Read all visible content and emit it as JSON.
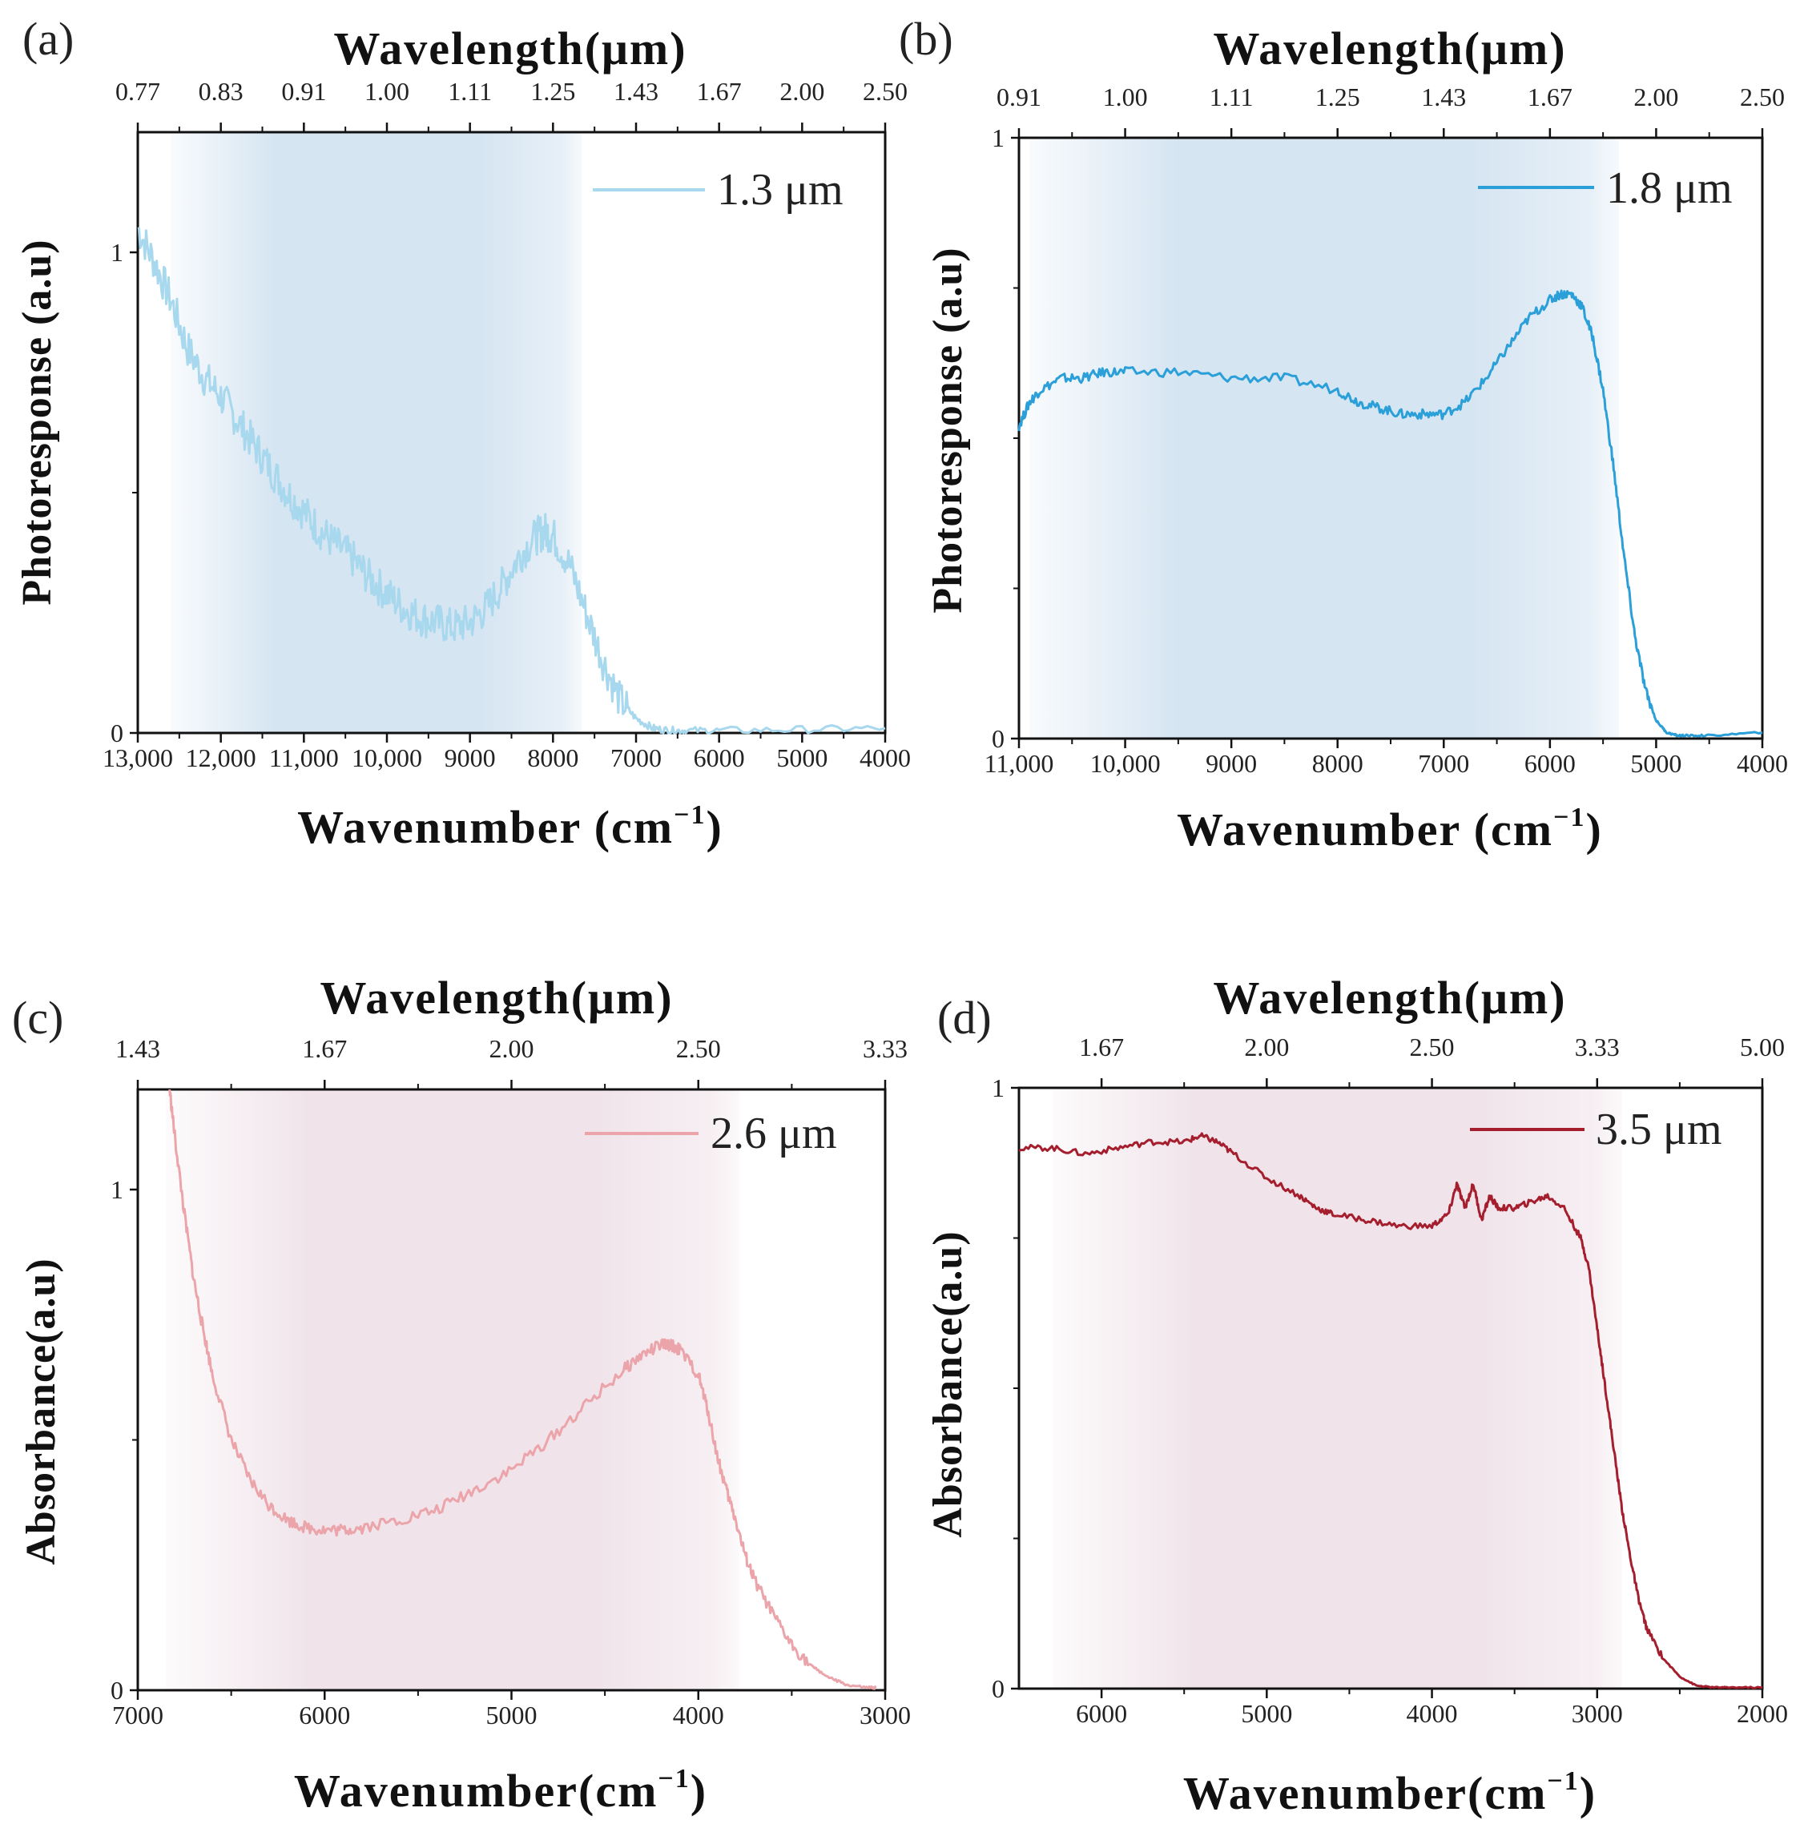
{
  "chart_data": [
    {
      "type": "line",
      "panel_label": "(a)",
      "top_axis_title": "Wavelength(μm)",
      "x_axis_title": "Wavenumber (cm",
      "x_axis_sup": "−1",
      "x_axis_close": ")",
      "y_axis_title": "Photoresponse (a.u)",
      "xlim": [
        13000,
        4000
      ],
      "ylim": [
        0,
        1.25
      ],
      "bottom_ticks": [
        {
          "v": 13000,
          "l": "13,000"
        },
        {
          "v": 12000,
          "l": "12,000"
        },
        {
          "v": 11000,
          "l": "11,000"
        },
        {
          "v": 10000,
          "l": "10,000"
        },
        {
          "v": 9000,
          "l": "9000"
        },
        {
          "v": 8000,
          "l": "8000"
        },
        {
          "v": 7000,
          "l": "7000"
        },
        {
          "v": 6000,
          "l": "6000"
        },
        {
          "v": 5000,
          "l": "5000"
        },
        {
          "v": 4000,
          "l": "4000"
        }
      ],
      "top_ticks": [
        {
          "v": 13000,
          "l": "0.77"
        },
        {
          "v": 12000,
          "l": "0.83"
        },
        {
          "v": 11000,
          "l": "0.91"
        },
        {
          "v": 10000,
          "l": "1.00"
        },
        {
          "v": 9000,
          "l": "1.11"
        },
        {
          "v": 8000,
          "l": "1.25"
        },
        {
          "v": 7000,
          "l": "1.43"
        },
        {
          "v": 6000,
          "l": "1.67"
        },
        {
          "v": 5000,
          "l": "2.00"
        },
        {
          "v": 4000,
          "l": "2.50"
        }
      ],
      "y_ticks": [
        {
          "v": 0,
          "l": "0"
        },
        {
          "v": 1,
          "l": "1"
        }
      ],
      "y_minor": [
        0.5
      ],
      "shade": {
        "from": 12600,
        "to": 7650,
        "color": "#d6e5f2"
      },
      "legend": "1.3 μm",
      "color": "#a8d8ee",
      "noise": 0.04,
      "series_x": [
        13000,
        12800,
        12600,
        12400,
        12200,
        12000,
        11800,
        11600,
        11400,
        11200,
        11000,
        10800,
        10600,
        10400,
        10200,
        10000,
        9800,
        9600,
        9400,
        9200,
        9000,
        8800,
        8600,
        8400,
        8200,
        8100,
        8000,
        7800,
        7600,
        7400,
        7200,
        7000,
        6800,
        6600,
        6400,
        6000,
        5000,
        4000
      ],
      "series_y": [
        1.05,
        0.98,
        0.9,
        0.8,
        0.74,
        0.7,
        0.65,
        0.6,
        0.55,
        0.5,
        0.46,
        0.42,
        0.39,
        0.36,
        0.32,
        0.29,
        0.26,
        0.24,
        0.23,
        0.22,
        0.23,
        0.26,
        0.31,
        0.37,
        0.41,
        0.42,
        0.41,
        0.35,
        0.25,
        0.15,
        0.07,
        0.03,
        0.01,
        0.005,
        0.005,
        0.005,
        0.007,
        0.01
      ]
    },
    {
      "type": "line",
      "panel_label": "(b)",
      "top_axis_title": "Wavelength(μm)",
      "x_axis_title": "Wavenumber (cm",
      "x_axis_sup": "−1",
      "x_axis_close": ")",
      "y_axis_title": "Photoresponse (a.u)",
      "xlim": [
        11000,
        4000
      ],
      "ylim": [
        0,
        1.0
      ],
      "bottom_ticks": [
        {
          "v": 11000,
          "l": "11,000"
        },
        {
          "v": 10000,
          "l": "10,000"
        },
        {
          "v": 9000,
          "l": "9000"
        },
        {
          "v": 8000,
          "l": "8000"
        },
        {
          "v": 7000,
          "l": "7000"
        },
        {
          "v": 6000,
          "l": "6000"
        },
        {
          "v": 5000,
          "l": "5000"
        },
        {
          "v": 4000,
          "l": "4000"
        }
      ],
      "top_ticks": [
        {
          "v": 11000,
          "l": "0.91"
        },
        {
          "v": 10000,
          "l": "1.00"
        },
        {
          "v": 9000,
          "l": "1.11"
        },
        {
          "v": 8000,
          "l": "1.25"
        },
        {
          "v": 7000,
          "l": "1.43"
        },
        {
          "v": 6000,
          "l": "1.67"
        },
        {
          "v": 5000,
          "l": "2.00"
        },
        {
          "v": 4000,
          "l": "2.50"
        }
      ],
      "y_ticks": [
        {
          "v": 0,
          "l": "0"
        },
        {
          "v": 1,
          "l": "1"
        }
      ],
      "y_minor": [
        0.25,
        0.5,
        0.75
      ],
      "shade": {
        "from": 10900,
        "to": 5350,
        "color": "#d6e5f2"
      },
      "legend": "1.8 μm",
      "color": "#2a9fd8",
      "noise": 0.008,
      "series_x": [
        11000,
        10900,
        10800,
        10600,
        10400,
        10200,
        10000,
        9500,
        9000,
        8500,
        8000,
        7800,
        7600,
        7400,
        7200,
        7000,
        6800,
        6600,
        6400,
        6200,
        6000,
        5900,
        5800,
        5700,
        5600,
        5500,
        5400,
        5300,
        5200,
        5100,
        5000,
        4900,
        4800,
        4700,
        4500,
        4000
      ],
      "series_y": [
        0.52,
        0.56,
        0.58,
        0.6,
        0.6,
        0.61,
        0.61,
        0.61,
        0.6,
        0.6,
        0.58,
        0.56,
        0.55,
        0.54,
        0.54,
        0.54,
        0.56,
        0.6,
        0.65,
        0.7,
        0.73,
        0.74,
        0.74,
        0.72,
        0.67,
        0.58,
        0.45,
        0.3,
        0.17,
        0.08,
        0.03,
        0.01,
        0.005,
        0.005,
        0.005,
        0.01
      ]
    },
    {
      "type": "line",
      "panel_label": "(c)",
      "top_axis_title": "Wavelength(μm)",
      "x_axis_title": "Wavenumber(cm",
      "x_axis_sup": "−1",
      "x_axis_close": ")",
      "y_axis_title": "Absorbance(a.u)",
      "xlim": [
        7000,
        3000
      ],
      "ylim": [
        0,
        1.2
      ],
      "bottom_ticks": [
        {
          "v": 7000,
          "l": "7000"
        },
        {
          "v": 6000,
          "l": "6000"
        },
        {
          "v": 5000,
          "l": "5000"
        },
        {
          "v": 4000,
          "l": "4000"
        },
        {
          "v": 3000,
          "l": "3000"
        }
      ],
      "top_ticks": [
        {
          "v": 7000,
          "l": "1.43"
        },
        {
          "v": 6000,
          "l": "1.67"
        },
        {
          "v": 5000,
          "l": "2.00"
        },
        {
          "v": 4000,
          "l": "2.50"
        },
        {
          "v": 3000,
          "l": "3.33"
        }
      ],
      "y_ticks": [
        {
          "v": 0,
          "l": "0"
        },
        {
          "v": 1,
          "l": "1"
        }
      ],
      "y_minor": [
        0.5
      ],
      "shade": {
        "from": 6850,
        "to": 3780,
        "color": "#f0e4ea"
      },
      "legend": "2.6 μm",
      "color": "#eba4aa",
      "noise": 0.012,
      "series_x": [
        6830,
        6800,
        6750,
        6700,
        6650,
        6600,
        6500,
        6400,
        6300,
        6200,
        6100,
        6000,
        5900,
        5800,
        5600,
        5400,
        5200,
        5000,
        4800,
        4600,
        4400,
        4300,
        4200,
        4150,
        4100,
        4000,
        3950,
        3900,
        3850,
        3800,
        3750,
        3700,
        3600,
        3500,
        3400,
        3300,
        3200,
        3100,
        3050
      ],
      "series_y": [
        1.2,
        1.1,
        0.95,
        0.82,
        0.72,
        0.63,
        0.5,
        0.42,
        0.37,
        0.34,
        0.325,
        0.32,
        0.32,
        0.325,
        0.34,
        0.36,
        0.4,
        0.44,
        0.5,
        0.57,
        0.64,
        0.67,
        0.69,
        0.69,
        0.68,
        0.63,
        0.56,
        0.47,
        0.4,
        0.34,
        0.27,
        0.22,
        0.15,
        0.09,
        0.05,
        0.025,
        0.01,
        0.005,
        0.005
      ]
    },
    {
      "type": "line",
      "panel_label": "(d)",
      "top_axis_title": "Wavelength(μm)",
      "x_axis_title": "Wavenumber(cm",
      "x_axis_sup": "−1",
      "x_axis_close": ")",
      "y_axis_title": "Absorbance(a.u)",
      "xlim": [
        6500,
        2000
      ],
      "ylim": [
        0,
        1.0
      ],
      "bottom_ticks": [
        {
          "v": 6000,
          "l": "6000"
        },
        {
          "v": 5000,
          "l": "5000"
        },
        {
          "v": 4000,
          "l": "4000"
        },
        {
          "v": 3000,
          "l": "3000"
        },
        {
          "v": 2000,
          "l": "2000"
        }
      ],
      "top_ticks": [
        {
          "v": 6000,
          "l": "1.67"
        },
        {
          "v": 5000,
          "l": "2.00"
        },
        {
          "v": 4000,
          "l": "2.50"
        },
        {
          "v": 3000,
          "l": "3.33"
        },
        {
          "v": 2000,
          "l": "5.00"
        }
      ],
      "y_ticks": [
        {
          "v": 0,
          "l": "0"
        },
        {
          "v": 1,
          "l": "1"
        }
      ],
      "y_minor": [
        0.25,
        0.5,
        0.75
      ],
      "shade": {
        "from": 6300,
        "to": 2850,
        "color": "#f0e4ea"
      },
      "legend": "3.5 μm",
      "color": "#a51e2d",
      "noise": 0.005,
      "series_x": [
        6500,
        6300,
        6100,
        5900,
        5700,
        5500,
        5400,
        5300,
        5200,
        5000,
        4800,
        4700,
        4600,
        4400,
        4200,
        4000,
        3900,
        3850,
        3800,
        3750,
        3700,
        3650,
        3600,
        3500,
        3400,
        3300,
        3200,
        3100,
        3050,
        3000,
        2950,
        2900,
        2850,
        2800,
        2750,
        2700,
        2600,
        2500,
        2400,
        2300,
        2200,
        2000
      ],
      "series_y": [
        0.9,
        0.9,
        0.89,
        0.9,
        0.91,
        0.91,
        0.92,
        0.91,
        0.89,
        0.85,
        0.82,
        0.8,
        0.79,
        0.78,
        0.77,
        0.77,
        0.79,
        0.84,
        0.8,
        0.84,
        0.78,
        0.82,
        0.8,
        0.8,
        0.81,
        0.82,
        0.8,
        0.75,
        0.7,
        0.6,
        0.5,
        0.4,
        0.3,
        0.22,
        0.15,
        0.1,
        0.05,
        0.02,
        0.005,
        0.002,
        0.002,
        0.002
      ]
    }
  ]
}
